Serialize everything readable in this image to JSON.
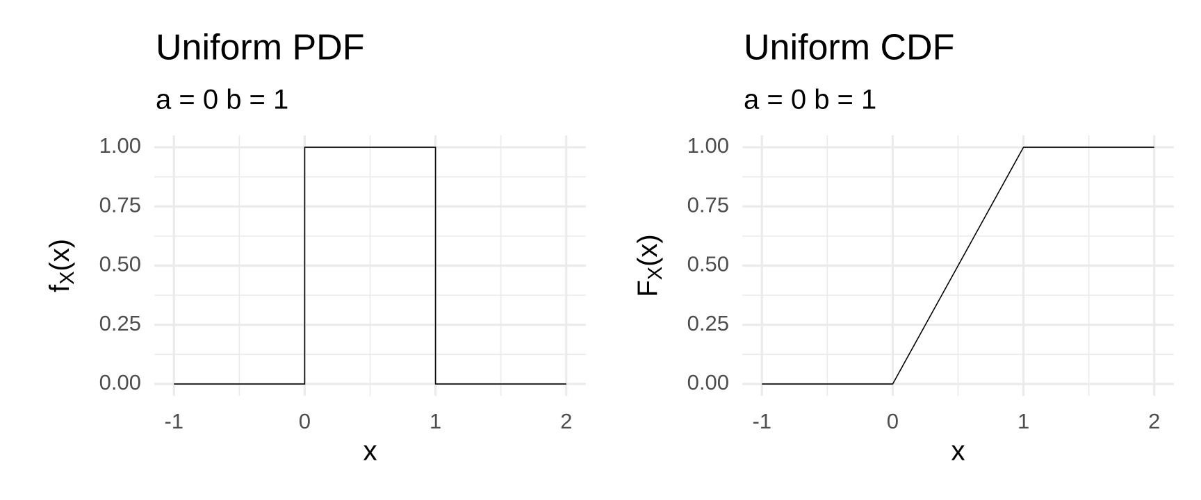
{
  "chart_data": [
    {
      "type": "line",
      "title": "Uniform PDF",
      "subtitle": "a = 0 b = 1",
      "xlabel": "x",
      "ylabel": {
        "base": "f",
        "sub": "X",
        "arg": "(x)"
      },
      "x": [
        -1,
        0,
        0,
        1,
        1,
        2
      ],
      "series": [
        {
          "color": "#000000",
          "values": [
            0,
            0,
            1,
            1,
            0,
            0
          ]
        }
      ],
      "xlim": [
        -1.15,
        2.15
      ],
      "ylim": [
        -0.05,
        1.05
      ],
      "xticks": [
        -1,
        0,
        1,
        2
      ],
      "yticks": [
        {
          "value": 0,
          "label": "0.00"
        },
        {
          "value": 0.25,
          "label": "0.25"
        },
        {
          "value": 0.5,
          "label": "0.50"
        },
        {
          "value": 0.75,
          "label": "0.75"
        },
        {
          "value": 1,
          "label": "1.00"
        }
      ],
      "x_minor_grid": [
        -0.5,
        0.5,
        1.5
      ],
      "y_minor_grid": [
        0.125,
        0.375,
        0.625,
        0.875
      ],
      "grid": true
    },
    {
      "type": "line",
      "title": "Uniform CDF",
      "subtitle": "a = 0 b = 1",
      "xlabel": "x",
      "ylabel": {
        "base": "F",
        "sub": "X",
        "arg": "(x)"
      },
      "x": [
        -1,
        0,
        1,
        2
      ],
      "series": [
        {
          "color": "#000000",
          "values": [
            0,
            0,
            1,
            1
          ]
        }
      ],
      "xlim": [
        -1.15,
        2.15
      ],
      "ylim": [
        -0.05,
        1.05
      ],
      "xticks": [
        -1,
        0,
        1,
        2
      ],
      "yticks": [
        {
          "value": 0,
          "label": "0.00"
        },
        {
          "value": 0.25,
          "label": "0.25"
        },
        {
          "value": 0.5,
          "label": "0.50"
        },
        {
          "value": 0.75,
          "label": "0.75"
        },
        {
          "value": 1,
          "label": "1.00"
        }
      ],
      "x_minor_grid": [
        -0.5,
        0.5,
        1.5
      ],
      "y_minor_grid": [
        0.125,
        0.375,
        0.625,
        0.875
      ],
      "grid": true
    }
  ]
}
